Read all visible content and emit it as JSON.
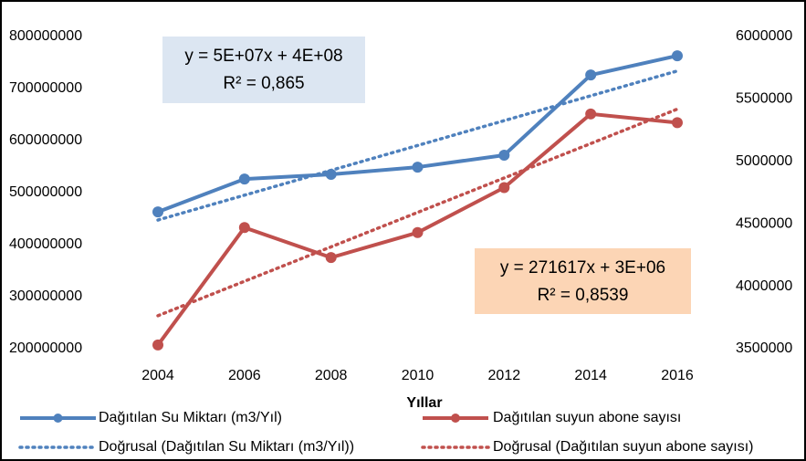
{
  "chart_data": {
    "type": "line",
    "x_label": "Yıllar",
    "categories": [
      "2004",
      "2006",
      "2008",
      "2010",
      "2012",
      "2014",
      "2016"
    ],
    "series": [
      {
        "name": "Dağıtılan Su Miktarı (m3/Yıl)",
        "color": "#4f81bd",
        "values": [
          463000000,
          526000000,
          535000000,
          549000000,
          572000000,
          726000000,
          763000000
        ],
        "trendline": {
          "name": "Doğrusal (Dağıtılan  Su Miktarı (m3/Yıl))",
          "equation": "y = 5E+07x + 4E+08",
          "r2": "R² = 0,865",
          "box_color": "#dce6f2"
        }
      },
      {
        "name": "Dağıtılan suyun abone sayısı",
        "color": "#c0504d",
        "axis": "y2",
        "values": [
          3530000,
          4470000,
          4230000,
          4430000,
          4790000,
          5380000,
          5310000
        ],
        "trendline": {
          "name": "Doğrusal (Dağıtılan suyun abone sayısı)",
          "equation": "y = 271617x + 3E+06",
          "r2": "R² = 0,8539",
          "box_color": "#fcd5b5"
        }
      }
    ],
    "ylim": [
      200000000,
      800000000
    ],
    "yticks": [
      200000000,
      300000000,
      400000000,
      500000000,
      600000000,
      700000000,
      800000000
    ],
    "y2lim": [
      3500000,
      6000000
    ],
    "y2ticks": [
      3500000,
      4000000,
      4500000,
      5000000,
      5500000,
      6000000
    ]
  }
}
